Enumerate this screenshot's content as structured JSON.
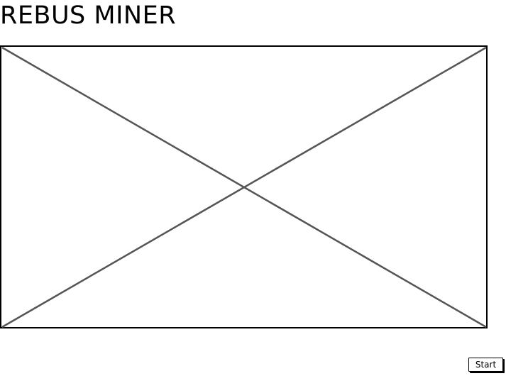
{
  "header": {
    "title": "REBUS MINER"
  },
  "image": {
    "icon": "image-placeholder-icon",
    "border_color": "#000000",
    "cross_color": "#555555"
  },
  "controls": {
    "start_label": "Start"
  }
}
